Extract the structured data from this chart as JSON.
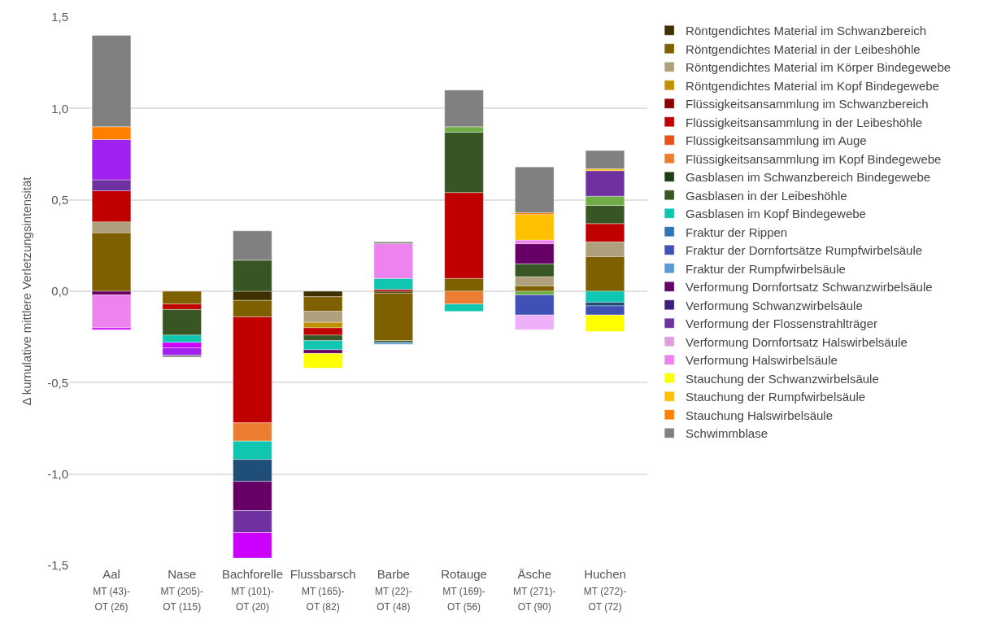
{
  "chart_data": {
    "type": "bar",
    "stacked": true,
    "ylabel": "Δ kumulative mittlere Verletzungsintensität",
    "categories": [
      "Aal\nMT (43)-\nOT (26)",
      "Nase\nMT (205)-\nOT (115)",
      "Bachforelle\nMT (101)-\nOT (20)",
      "Flussbarsch\nMT (165)-\nOT (82)",
      "Barbe\nMT (22)-\nOT (48)",
      "Rotauge\nMT (169)-\nOT (56)",
      "Äsche\nMT (271)-\nOT (90)",
      "Huchen\nMT (272)-\nOT (72)"
    ],
    "series": [
      {
        "name": "Röntgendichtes Material im Schwanzbereich",
        "color": "#3f3000",
        "values": [
          null,
          null,
          -0.05,
          -0.03,
          -0.01,
          null,
          null,
          null
        ]
      },
      {
        "name": "Röntgendichtes Material in der Leibeshöhle",
        "color": "#7f6000",
        "values": [
          0.32,
          -0.07,
          -0.09,
          -0.08,
          -0.26,
          0.07,
          0.03,
          0.19
        ]
      },
      {
        "name": "Röntgendichtes Material im Körper Bindegewebe",
        "color": "#aea07d",
        "values": [
          0.06,
          null,
          null,
          -0.06,
          null,
          null,
          0.05,
          0.08
        ]
      },
      {
        "name": "Röntgendichtes Material im Kopf Bindegewebe",
        "color": "#bf9000",
        "values": [
          null,
          null,
          null,
          -0.03,
          null,
          null,
          null,
          null
        ]
      },
      {
        "name": "Flüssigkeitsansammlung im Schwanzbereich",
        "color": "#8b0000",
        "values": [
          null,
          null,
          null,
          null,
          null,
          null,
          null,
          null
        ]
      },
      {
        "name": "Flüssigkeitsansammlung in der Leibeshöhle",
        "color": "#c00000",
        "values": [
          0.17,
          -0.03,
          -0.58,
          -0.04,
          0.01,
          0.47,
          null,
          0.1
        ]
      },
      {
        "name": "Flüssigkeitsansammlung im Auge",
        "color": "#e8501a",
        "values": [
          null,
          null,
          null,
          null,
          null,
          null,
          null,
          null
        ]
      },
      {
        "name": "Flüssigkeitsansammlung im Kopf Bindegewebe",
        "color": "#ed7d31",
        "values": [
          null,
          null,
          -0.1,
          null,
          null,
          -0.07,
          null,
          null
        ]
      },
      {
        "name": "Gasblasen im Schwanzbereich Bindegewebe",
        "color": "#1e3d14",
        "values": [
          null,
          null,
          null,
          null,
          null,
          null,
          null,
          null
        ]
      },
      {
        "name": "Gasblasen in der Leibeshöhle",
        "color": "#375623",
        "values": [
          null,
          -0.14,
          0.17,
          -0.03,
          -0.01,
          0.33,
          0.07,
          0.1
        ]
      },
      {
        "name": "Gasblasen im Kopf Bindegewebe",
        "color": "#0fc7b0",
        "values": [
          null,
          -0.04,
          -0.1,
          -0.05,
          0.06,
          -0.04,
          null,
          -0.06
        ]
      },
      {
        "color": "#70ad47",
        "values": [
          null,
          null,
          null,
          null,
          null,
          0.03,
          -0.02,
          0.05
        ]
      },
      {
        "name": "Fraktur der Rippen",
        "color": "#2e75b6",
        "values": [
          null,
          null,
          null,
          null,
          null,
          null,
          null,
          null
        ]
      },
      {
        "color": "#1f4e79",
        "values": [
          null,
          null,
          -0.12,
          null,
          null,
          null,
          null,
          -0.02
        ]
      },
      {
        "name": "Fraktur der Dornfortsätze Rumpfwirbelsäule",
        "color": "#3f51b5",
        "values": [
          null,
          null,
          null,
          null,
          null,
          null,
          -0.11,
          -0.05
        ]
      },
      {
        "name": "Fraktur der Rumpfwirbelsäule",
        "color": "#5b9bd5",
        "values": [
          null,
          null,
          null,
          null,
          -0.01,
          null,
          null,
          null
        ]
      },
      {
        "name": "Verformung Dornfortsatz Schwanzwirbelsäule",
        "color": "#660066",
        "values": [
          -0.02,
          null,
          -0.16,
          -0.02,
          null,
          null,
          0.11,
          null
        ]
      },
      {
        "name": "Verformung Schwanzwirbelsäule",
        "color": "#3b1f7a",
        "values": [
          null,
          null,
          null,
          null,
          null,
          null,
          null,
          null
        ]
      },
      {
        "name": "Verformung der Flossenstrahlträger",
        "color": "#7030a0",
        "values": [
          0.06,
          null,
          -0.12,
          null,
          null,
          null,
          null,
          0.14
        ]
      },
      {
        "name": "Verformung Dornfortsatz Halswirbelsäule",
        "color": "#dda0dd",
        "values": [
          null,
          null,
          null,
          null,
          null,
          null,
          null,
          null
        ]
      },
      {
        "name": "Verformung Halswirbelsäule",
        "color": "#ee82ee",
        "values": [
          -0.18,
          null,
          null,
          null,
          0.19,
          null,
          0.02,
          null
        ]
      },
      {
        "color": "#eeb0f8",
        "values": [
          null,
          null,
          null,
          null,
          null,
          null,
          -0.08,
          null
        ]
      },
      {
        "color": "#cc00ff",
        "values": [
          -0.01,
          -0.03,
          -0.14,
          null,
          null,
          null,
          null,
          null
        ]
      },
      {
        "color": "#a020f0",
        "values": [
          0.22,
          -0.04,
          null,
          null,
          null,
          null,
          null,
          null
        ]
      },
      {
        "name": "Stauchung der Schwanzwirbelsäule",
        "color": "#ffff00",
        "values": [
          null,
          null,
          null,
          -0.08,
          null,
          null,
          null,
          -0.09
        ]
      },
      {
        "name": "Stauchung der Rumpfwirbelsäule",
        "color": "#ffc000",
        "values": [
          null,
          null,
          null,
          null,
          null,
          null,
          0.14,
          0.01
        ]
      },
      {
        "name": "Stauchung Halswirbelsäule",
        "color": "#ff7f00",
        "values": [
          0.07,
          null,
          null,
          null,
          null,
          null,
          0.01,
          null
        ]
      },
      {
        "name": "Schwimmblase",
        "color": "#808080",
        "values": [
          0.5,
          -0.01,
          0.16,
          null,
          0.01,
          0.2,
          0.25,
          0.1
        ]
      }
    ],
    "ylim": [
      -1.5,
      1.5
    ],
    "yticks": [
      {
        "value": -1.5,
        "label": "-1,5"
      },
      {
        "value": -1.0,
        "label": "-1,0"
      },
      {
        "value": -0.5,
        "label": "-0,5"
      },
      {
        "value": 0,
        "label": "0,0"
      },
      {
        "value": 0.5,
        "label": "0,5"
      },
      {
        "value": 1.0,
        "label": "1,0"
      },
      {
        "value": 1.5,
        "label": "1,5"
      }
    ],
    "grid": "y",
    "legend": "right"
  }
}
